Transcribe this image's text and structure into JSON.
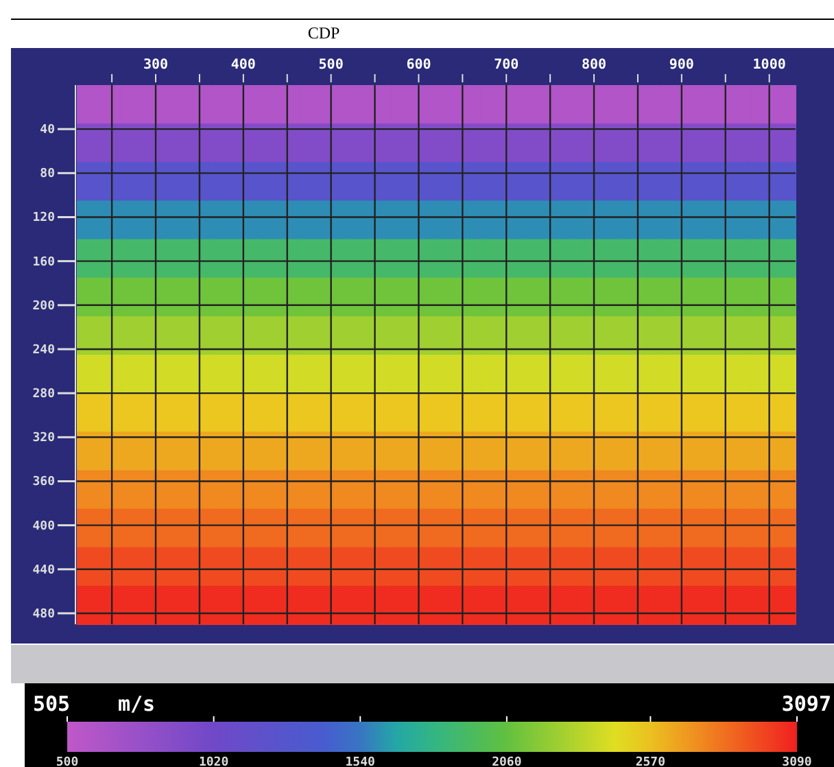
{
  "chart_data": {
    "type": "heatmap",
    "xlabel": "CDP",
    "clabel": "m/s",
    "xlim": [
      210,
      1030
    ],
    "xticks": [
      {
        "value": 250,
        "label": null
      },
      300,
      {
        "value": 350,
        "label": null
      },
      400,
      {
        "value": 450,
        "label": null
      },
      500,
      {
        "value": 550,
        "label": null
      },
      600,
      {
        "value": 650,
        "label": null
      },
      700,
      {
        "value": 750,
        "label": null
      },
      800,
      {
        "value": 850,
        "label": null
      },
      900,
      {
        "value": 950,
        "label": null
      },
      1000
    ],
    "ylim": [
      490,
      0
    ],
    "yticks": [
      40,
      80,
      120,
      160,
      200,
      240,
      280,
      320,
      360,
      400,
      440,
      480
    ],
    "grid": true,
    "clim": [
      500,
      3090
    ],
    "cticks": [
      500,
      1020,
      1540,
      2060,
      2570,
      3090
    ],
    "annotations": [
      "505",
      "3097"
    ],
    "cells": [
      [
        600,
        600,
        600,
        600,
        600,
        600,
        600,
        600,
        600,
        600,
        600,
        600,
        600,
        600,
        600,
        600
      ],
      [
        900,
        900,
        900,
        900,
        900,
        900,
        900,
        900,
        900,
        900,
        900,
        900,
        900,
        900,
        900,
        900
      ],
      [
        1250,
        1250,
        1250,
        1250,
        1250,
        1250,
        1250,
        1250,
        1250,
        1250,
        1250,
        1250,
        1250,
        1250,
        1250,
        1250
      ],
      [
        1600,
        1600,
        1600,
        1600,
        1600,
        1600,
        1600,
        1600,
        1600,
        1600,
        1600,
        1600,
        1600,
        1600,
        1600,
        1600
      ],
      [
        1900,
        1900,
        1900,
        1900,
        1900,
        1900,
        1900,
        1900,
        1900,
        1900,
        1900,
        1900,
        1900,
        1900,
        1900,
        1900
      ],
      [
        2100,
        2100,
        2100,
        2100,
        2100,
        2100,
        2100,
        2100,
        2100,
        2100,
        2100,
        2100,
        2100,
        2100,
        2100,
        2100
      ],
      [
        2250,
        2250,
        2250,
        2250,
        2250,
        2250,
        2250,
        2250,
        2250,
        2250,
        2250,
        2250,
        2250,
        2250,
        2250,
        2250
      ],
      [
        2400,
        2400,
        2400,
        2400,
        2400,
        2400,
        2400,
        2400,
        2400,
        2400,
        2400,
        2400,
        2400,
        2400,
        2400,
        2400
      ],
      [
        2550,
        2550,
        2550,
        2550,
        2550,
        2550,
        2550,
        2550,
        2550,
        2550,
        2550,
        2550,
        2550,
        2550,
        2550,
        2550
      ],
      [
        2650,
        2650,
        2650,
        2650,
        2650,
        2650,
        2650,
        2650,
        2650,
        2650,
        2650,
        2650,
        2650,
        2650,
        2650,
        2650
      ],
      [
        2750,
        2750,
        2750,
        2750,
        2750,
        2750,
        2750,
        2750,
        2750,
        2750,
        2750,
        2750,
        2750,
        2750,
        2750,
        2750
      ],
      [
        2850,
        2850,
        2850,
        2850,
        2850,
        2850,
        2850,
        2850,
        2850,
        2850,
        2850,
        2850,
        2850,
        2850,
        2850,
        2850
      ],
      [
        2950,
        2950,
        2950,
        2950,
        2950,
        2950,
        2950,
        2950,
        2950,
        2950,
        2950,
        2950,
        2950,
        2950,
        2950,
        2950
      ],
      [
        3050,
        3050,
        3050,
        3050,
        3050,
        3050,
        3050,
        3050,
        3050,
        3050,
        3050,
        3050,
        3050,
        3050,
        3050,
        3050
      ]
    ]
  }
}
